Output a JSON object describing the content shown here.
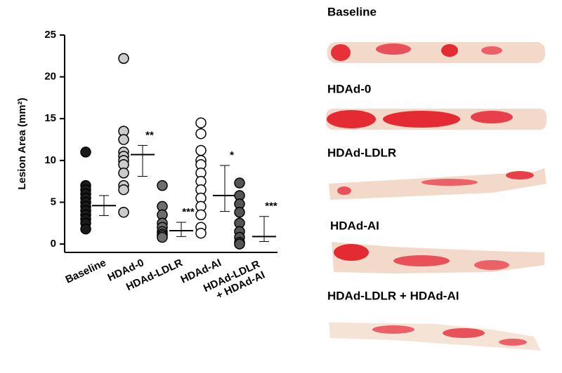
{
  "chart_data": {
    "type": "dot",
    "y_label": "Lesion Area (mm²)",
    "categories": [
      "Baseline",
      "HDAd-0",
      "HDAd-LDLR",
      "HDAd-AI",
      "HDAd-LDLR\n+ HDAd-AI"
    ],
    "colors": [
      "#1a1a1a",
      "#cccccc",
      "#6e6e6e",
      "#ffffff",
      "#555555"
    ],
    "values": [
      [
        11.0,
        7.0,
        6.5,
        6.0,
        5.5,
        5.0,
        4.5,
        4.0,
        3.5,
        3.0,
        2.5,
        1.8
      ],
      [
        22.2,
        13.5,
        12.5,
        11.0,
        10.5,
        10.0,
        9.5,
        8.5,
        7.0,
        6.5,
        3.8
      ],
      [
        7.0,
        4.5,
        3.5,
        2.5,
        2.0,
        1.5,
        1.2,
        1.0,
        0.8
      ],
      [
        14.5,
        13.2,
        11.2,
        10.0,
        9.5,
        8.5,
        7.5,
        6.5,
        5.5,
        4.5,
        3.5,
        2.0,
        1.3
      ],
      [
        7.3,
        5.8,
        4.8,
        3.8,
        2.5,
        1.5,
        0.8,
        0.2,
        0.0
      ]
    ],
    "mean": [
      4.6,
      10.7,
      1.6,
      5.8,
      0.9
    ],
    "lower": [
      3.4,
      8.1,
      0.9,
      3.9,
      0.3
    ],
    "upper": [
      5.8,
      11.8,
      2.6,
      9.4,
      3.3
    ],
    "significance": [
      null,
      "**",
      "***",
      "*",
      "***"
    ],
    "ylim": [
      -1,
      25
    ],
    "yticks": [
      0,
      5,
      10,
      15,
      20,
      25
    ]
  },
  "panels": [
    "Baseline",
    "HDAd-0",
    "HDAd-LDLR",
    "HDAd-AI",
    "HDAd-LDLR + HDAd-AI"
  ]
}
